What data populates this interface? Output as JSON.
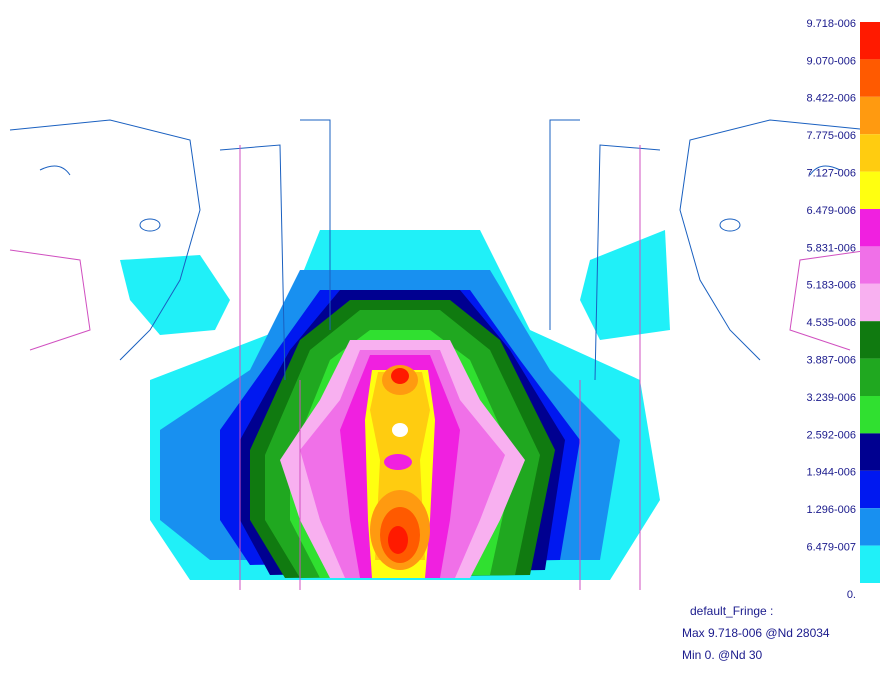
{
  "legend": {
    "levels": [
      {
        "label": "9.718-006",
        "color": "#ff1a00"
      },
      {
        "label": "9.070-006",
        "color": "#ff5a00"
      },
      {
        "label": "8.422-006",
        "color": "#ff9a10"
      },
      {
        "label": "7.775-006",
        "color": "#ffcc10"
      },
      {
        "label": "7.127-006",
        "color": "#ffff10"
      },
      {
        "label": "6.479-006",
        "color": "#f020e0"
      },
      {
        "label": "5.831-006",
        "color": "#f070e8"
      },
      {
        "label": "5.183-006",
        "color": "#f8b0f0"
      },
      {
        "label": "4.535-006",
        "color": "#107a10"
      },
      {
        "label": "3.887-006",
        "color": "#20a820"
      },
      {
        "label": "3.239-006",
        "color": "#30e030"
      },
      {
        "label": "2.592-006",
        "color": "#000090"
      },
      {
        "label": "1.944-006",
        "color": "#0018f0"
      },
      {
        "label": "1.296-006",
        "color": "#1890f0"
      },
      {
        "label": "6.479-007",
        "color": "#20f0f8"
      }
    ],
    "min_label": "0."
  },
  "footer": {
    "title": "default_Fringe :",
    "max": "Max 9.718-006 @Nd 28034",
    "min": "Min  0. @Nd 30"
  }
}
